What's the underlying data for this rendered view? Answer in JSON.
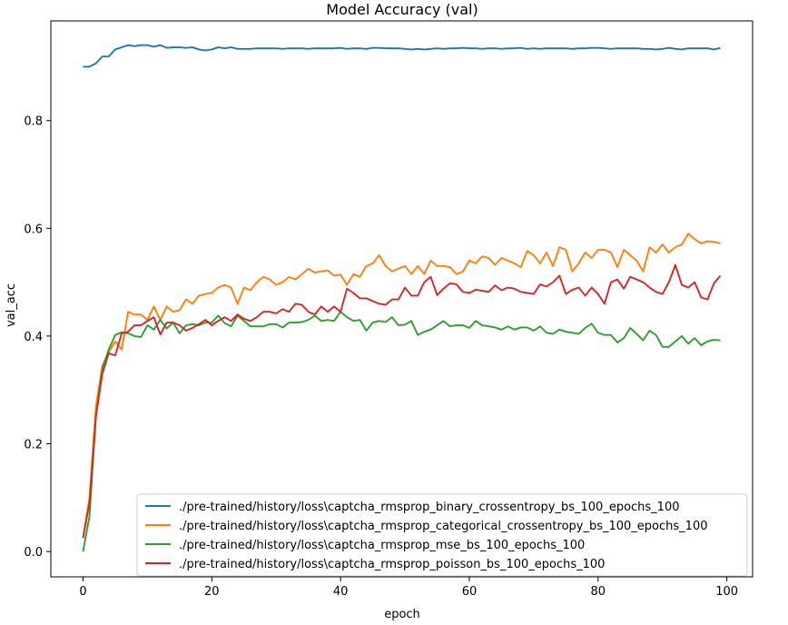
{
  "chart_data": {
    "type": "line",
    "title": "Model Accuracy (val)",
    "xlabel": "epoch",
    "ylabel": "val_acc",
    "xlim": [
      -5,
      104
    ],
    "ylim": [
      -0.047,
      0.985
    ],
    "xticks": [
      0,
      20,
      40,
      60,
      80,
      100
    ],
    "yticks": [
      0.0,
      0.2,
      0.4,
      0.6,
      0.8
    ],
    "xtick_labels": [
      "0",
      "20",
      "40",
      "60",
      "80",
      "100"
    ],
    "ytick_labels": [
      "0.0",
      "0.2",
      "0.4",
      "0.6",
      "0.8"
    ],
    "grid": false,
    "legend_position": "lower-right",
    "series": [
      {
        "name": "./pre-trained/history/loss\\captcha_rmsprop_binary_crossentropy_bs_100_epochs_100",
        "color": "#1f77b4",
        "values": [
          0.9,
          0.9,
          0.906,
          0.919,
          0.919,
          0.932,
          0.936,
          0.94,
          0.938,
          0.94,
          0.94,
          0.937,
          0.94,
          0.935,
          0.936,
          0.936,
          0.935,
          0.936,
          0.932,
          0.93,
          0.932,
          0.936,
          0.934,
          0.936,
          0.933,
          0.933,
          0.933,
          0.934,
          0.934,
          0.934,
          0.934,
          0.933,
          0.934,
          0.934,
          0.934,
          0.933,
          0.934,
          0.934,
          0.934,
          0.934,
          0.935,
          0.933,
          0.934,
          0.934,
          0.933,
          0.935,
          0.935,
          0.934,
          0.934,
          0.934,
          0.933,
          0.932,
          0.933,
          0.932,
          0.933,
          0.934,
          0.933,
          0.934,
          0.934,
          0.935,
          0.934,
          0.934,
          0.933,
          0.934,
          0.934,
          0.933,
          0.934,
          0.934,
          0.935,
          0.933,
          0.934,
          0.933,
          0.934,
          0.934,
          0.934,
          0.934,
          0.933,
          0.934,
          0.934,
          0.935,
          0.935,
          0.934,
          0.933,
          0.934,
          0.934,
          0.934,
          0.934,
          0.933,
          0.933,
          0.932,
          0.933,
          0.935,
          0.933,
          0.932,
          0.934,
          0.934,
          0.934,
          0.934,
          0.932,
          0.935
        ]
      },
      {
        "name": "./pre-trained/history/loss\\captcha_rmsprop_categorical_crossentropy_bs_100_epochs_100",
        "color": "#ff7f0e",
        "values": [
          0.025,
          0.1,
          0.27,
          0.345,
          0.37,
          0.39,
          0.375,
          0.445,
          0.44,
          0.44,
          0.43,
          0.455,
          0.43,
          0.455,
          0.445,
          0.448,
          0.468,
          0.46,
          0.475,
          0.478,
          0.48,
          0.49,
          0.495,
          0.49,
          0.46,
          0.49,
          0.485,
          0.5,
          0.51,
          0.505,
          0.495,
          0.5,
          0.51,
          0.505,
          0.515,
          0.525,
          0.518,
          0.52,
          0.522,
          0.512,
          0.514,
          0.495,
          0.515,
          0.51,
          0.53,
          0.535,
          0.55,
          0.53,
          0.52,
          0.525,
          0.53,
          0.515,
          0.53,
          0.515,
          0.54,
          0.53,
          0.53,
          0.528,
          0.515,
          0.52,
          0.54,
          0.535,
          0.548,
          0.545,
          0.532,
          0.545,
          0.54,
          0.535,
          0.528,
          0.558,
          0.55,
          0.535,
          0.555,
          0.53,
          0.565,
          0.56,
          0.52,
          0.535,
          0.555,
          0.545,
          0.56,
          0.56,
          0.555,
          0.528,
          0.56,
          0.55,
          0.54,
          0.52,
          0.565,
          0.555,
          0.57,
          0.555,
          0.565,
          0.57,
          0.59,
          0.58,
          0.572,
          0.576,
          0.575,
          0.572
        ]
      },
      {
        "name": "./pre-trained/history/loss\\captcha_rmsprop_mse_bs_100_epochs_100",
        "color": "#2ca02c",
        "values": [
          0.0,
          0.065,
          0.25,
          0.34,
          0.375,
          0.402,
          0.407,
          0.405,
          0.4,
          0.398,
          0.42,
          0.412,
          0.43,
          0.414,
          0.425,
          0.405,
          0.42,
          0.422,
          0.42,
          0.425,
          0.425,
          0.438,
          0.424,
          0.418,
          0.438,
          0.428,
          0.418,
          0.418,
          0.418,
          0.422,
          0.422,
          0.416,
          0.425,
          0.425,
          0.426,
          0.43,
          0.438,
          0.428,
          0.43,
          0.428,
          0.445,
          0.435,
          0.428,
          0.43,
          0.41,
          0.425,
          0.428,
          0.426,
          0.435,
          0.42,
          0.421,
          0.428,
          0.402,
          0.408,
          0.412,
          0.42,
          0.428,
          0.418,
          0.42,
          0.42,
          0.415,
          0.428,
          0.42,
          0.418,
          0.416,
          0.412,
          0.418,
          0.412,
          0.416,
          0.416,
          0.41,
          0.418,
          0.406,
          0.404,
          0.412,
          0.408,
          0.406,
          0.404,
          0.415,
          0.423,
          0.406,
          0.402,
          0.402,
          0.388,
          0.396,
          0.415,
          0.404,
          0.392,
          0.41,
          0.402,
          0.38,
          0.38,
          0.39,
          0.4,
          0.386,
          0.396,
          0.383,
          0.39,
          0.393,
          0.392
        ]
      },
      {
        "name": "./pre-trained/history/loss\\captcha_rmsprop_poisson_bs_100_epochs_100",
        "color": "#d62728",
        "values": [
          0.025,
          0.09,
          0.25,
          0.33,
          0.368,
          0.364,
          0.405,
          0.408,
          0.42,
          0.42,
          0.428,
          0.435,
          0.403,
          0.425,
          0.425,
          0.42,
          0.41,
          0.415,
          0.422,
          0.43,
          0.42,
          0.428,
          0.435,
          0.428,
          0.44,
          0.432,
          0.428,
          0.435,
          0.445,
          0.445,
          0.442,
          0.45,
          0.445,
          0.46,
          0.458,
          0.445,
          0.44,
          0.455,
          0.445,
          0.455,
          0.445,
          0.488,
          0.48,
          0.47,
          0.47,
          0.465,
          0.46,
          0.458,
          0.468,
          0.468,
          0.49,
          0.475,
          0.475,
          0.5,
          0.51,
          0.476,
          0.488,
          0.498,
          0.496,
          0.482,
          0.48,
          0.486,
          0.484,
          0.482,
          0.494,
          0.485,
          0.49,
          0.488,
          0.482,
          0.48,
          0.478,
          0.496,
          0.492,
          0.5,
          0.512,
          0.478,
          0.486,
          0.49,
          0.475,
          0.49,
          0.478,
          0.46,
          0.5,
          0.505,
          0.488,
          0.51,
          0.505,
          0.5,
          0.49,
          0.482,
          0.478,
          0.5,
          0.532,
          0.495,
          0.49,
          0.5,
          0.472,
          0.468,
          0.498,
          0.512
        ]
      }
    ]
  }
}
